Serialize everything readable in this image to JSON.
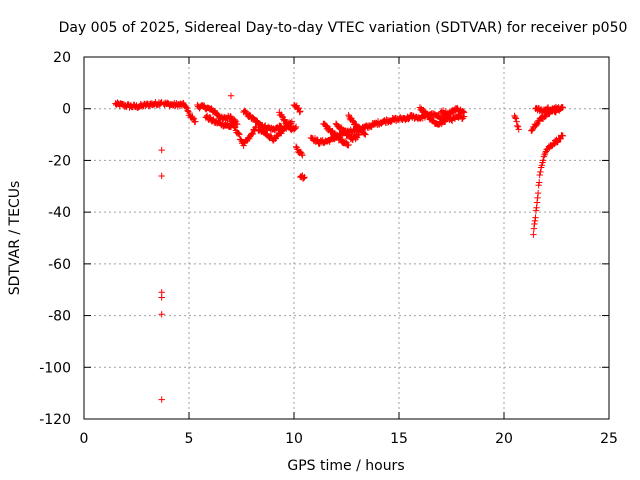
{
  "chart_data": {
    "type": "scatter",
    "title": "Day 005 of 2025, Sidereal Day-to-day VTEC variation (SDTVAR) for receiver p050",
    "xlabel": "GPS time / hours",
    "ylabel": "SDTVAR / TECUs",
    "xlim": [
      0,
      25
    ],
    "ylim": [
      -120,
      20
    ],
    "x_ticks": [
      0,
      5,
      10,
      15,
      20,
      25
    ],
    "y_ticks": [
      -120,
      -100,
      -80,
      -60,
      -40,
      -20,
      0,
      20
    ],
    "grid": true,
    "marker": "+",
    "marker_color": "#ff0000",
    "series": [
      {
        "name": "SDTVAR",
        "segments": [
          [
            [
              1.5,
              1.8
            ],
            [
              2.0,
              1.2
            ],
            [
              2.5,
              0.8
            ],
            [
              3.0,
              1.5
            ],
            [
              3.5,
              2.0
            ],
            [
              3.7,
              2.5
            ]
          ],
          [
            [
              3.8,
              2.0
            ],
            [
              4.2,
              1.5
            ],
            [
              4.8,
              1.5
            ],
            [
              5.0,
              -2.0
            ],
            [
              5.3,
              -5.0
            ]
          ],
          [
            [
              5.4,
              1.0
            ],
            [
              5.8,
              0.5
            ],
            [
              6.2,
              -1.0
            ],
            [
              6.6,
              -4.0
            ],
            [
              7.0,
              -3.0
            ],
            [
              7.3,
              -6.0
            ]
          ],
          [
            [
              5.8,
              -3.0
            ],
            [
              6.2,
              -5.0
            ],
            [
              6.6,
              -6.0
            ],
            [
              7.0,
              -7.0
            ]
          ],
          [
            [
              7.0,
              -5.0
            ],
            [
              7.3,
              -9.0
            ],
            [
              7.6,
              -14.0
            ],
            [
              7.9,
              -11.0
            ],
            [
              8.2,
              -7.0
            ]
          ],
          [
            [
              7.6,
              -1.0
            ],
            [
              7.9,
              -3.0
            ],
            [
              8.2,
              -5.0
            ],
            [
              8.6,
              -7.0
            ],
            [
              9.0,
              -8.0
            ],
            [
              9.4,
              -7.0
            ]
          ],
          [
            [
              8.3,
              -8.0
            ],
            [
              8.7,
              -10.0
            ],
            [
              9.1,
              -12.0
            ],
            [
              9.5,
              -8.0
            ],
            [
              9.9,
              -5.0
            ]
          ],
          [
            [
              9.3,
              -2.0
            ],
            [
              9.6,
              -5.0
            ],
            [
              9.9,
              -8.0
            ],
            [
              10.1,
              -7.0
            ]
          ],
          [
            [
              10.0,
              2.0
            ],
            [
              10.3,
              -1.0
            ]
          ],
          [
            [
              10.1,
              -15.0
            ],
            [
              10.4,
              -18.0
            ]
          ],
          [
            [
              10.3,
              -26.0
            ],
            [
              10.5,
              -26.5
            ]
          ],
          [
            [
              10.8,
              -11.0
            ],
            [
              11.2,
              -13.0
            ],
            [
              11.6,
              -12.5
            ],
            [
              12.0,
              -11.0
            ],
            [
              12.5,
              -9.0
            ],
            [
              13.0,
              -8.0
            ],
            [
              13.5,
              -7.0
            ],
            [
              14.0,
              -5.5
            ],
            [
              14.5,
              -4.5
            ],
            [
              15.0,
              -4.0
            ],
            [
              15.5,
              -3.5
            ]
          ],
          [
            [
              11.4,
              -6.0
            ],
            [
              11.8,
              -9.0
            ],
            [
              12.2,
              -12.0
            ],
            [
              12.6,
              -14.0
            ]
          ],
          [
            [
              12.0,
              -6.0
            ],
            [
              12.4,
              -9.0
            ],
            [
              12.8,
              -12.0
            ],
            [
              13.1,
              -10.0
            ]
          ],
          [
            [
              12.6,
              -3.0
            ],
            [
              13.0,
              -7.0
            ],
            [
              13.4,
              -10.0
            ]
          ],
          [
            [
              15.5,
              -3.0
            ],
            [
              16.0,
              -3.5
            ],
            [
              16.5,
              -2.0
            ],
            [
              17.0,
              -3.5
            ],
            [
              17.5,
              -4.0
            ],
            [
              18.1,
              -3.0
            ]
          ],
          [
            [
              16.0,
              0.5
            ],
            [
              16.4,
              -3.0
            ],
            [
              16.8,
              -6.0
            ],
            [
              17.2,
              -5.0
            ]
          ],
          [
            [
              17.0,
              -1.0
            ],
            [
              17.4,
              -2.0
            ],
            [
              17.7,
              0.0
            ],
            [
              18.1,
              -1.5
            ]
          ],
          [
            [
              20.5,
              -3.0
            ],
            [
              20.6,
              -5.0
            ],
            [
              20.7,
              -8.0
            ]
          ],
          [
            [
              21.3,
              -8.0
            ],
            [
              21.6,
              -5.0
            ],
            [
              21.9,
              -3.0
            ],
            [
              22.2,
              -1.0
            ],
            [
              22.6,
              0.5
            ]
          ],
          [
            [
              21.5,
              0.5
            ],
            [
              21.8,
              -1.0
            ],
            [
              22.1,
              0.0
            ],
            [
              22.5,
              -1.0
            ],
            [
              22.8,
              0.5
            ]
          ],
          [
            [
              21.4,
              -48.0
            ],
            [
              21.45,
              -45.0
            ],
            [
              21.5,
              -42.0
            ],
            [
              21.55,
              -38.0
            ],
            [
              21.6,
              -34.0
            ],
            [
              21.65,
              -30.0
            ],
            [
              21.7,
              -26.0
            ],
            [
              21.8,
              -22.0
            ],
            [
              21.9,
              -18.0
            ],
            [
              22.0,
              -16.0
            ],
            [
              22.2,
              -14.5
            ],
            [
              22.4,
              -13.0
            ],
            [
              22.6,
              -12.0
            ],
            [
              22.8,
              -10.5
            ]
          ]
        ],
        "outliers": [
          [
            3.7,
            -16.0
          ],
          [
            3.7,
            -26.0
          ],
          [
            3.7,
            -71.0
          ],
          [
            3.7,
            -73.0
          ],
          [
            3.7,
            -79.5
          ],
          [
            3.7,
            -112.5
          ],
          [
            7.0,
            5.0
          ]
        ]
      }
    ]
  }
}
